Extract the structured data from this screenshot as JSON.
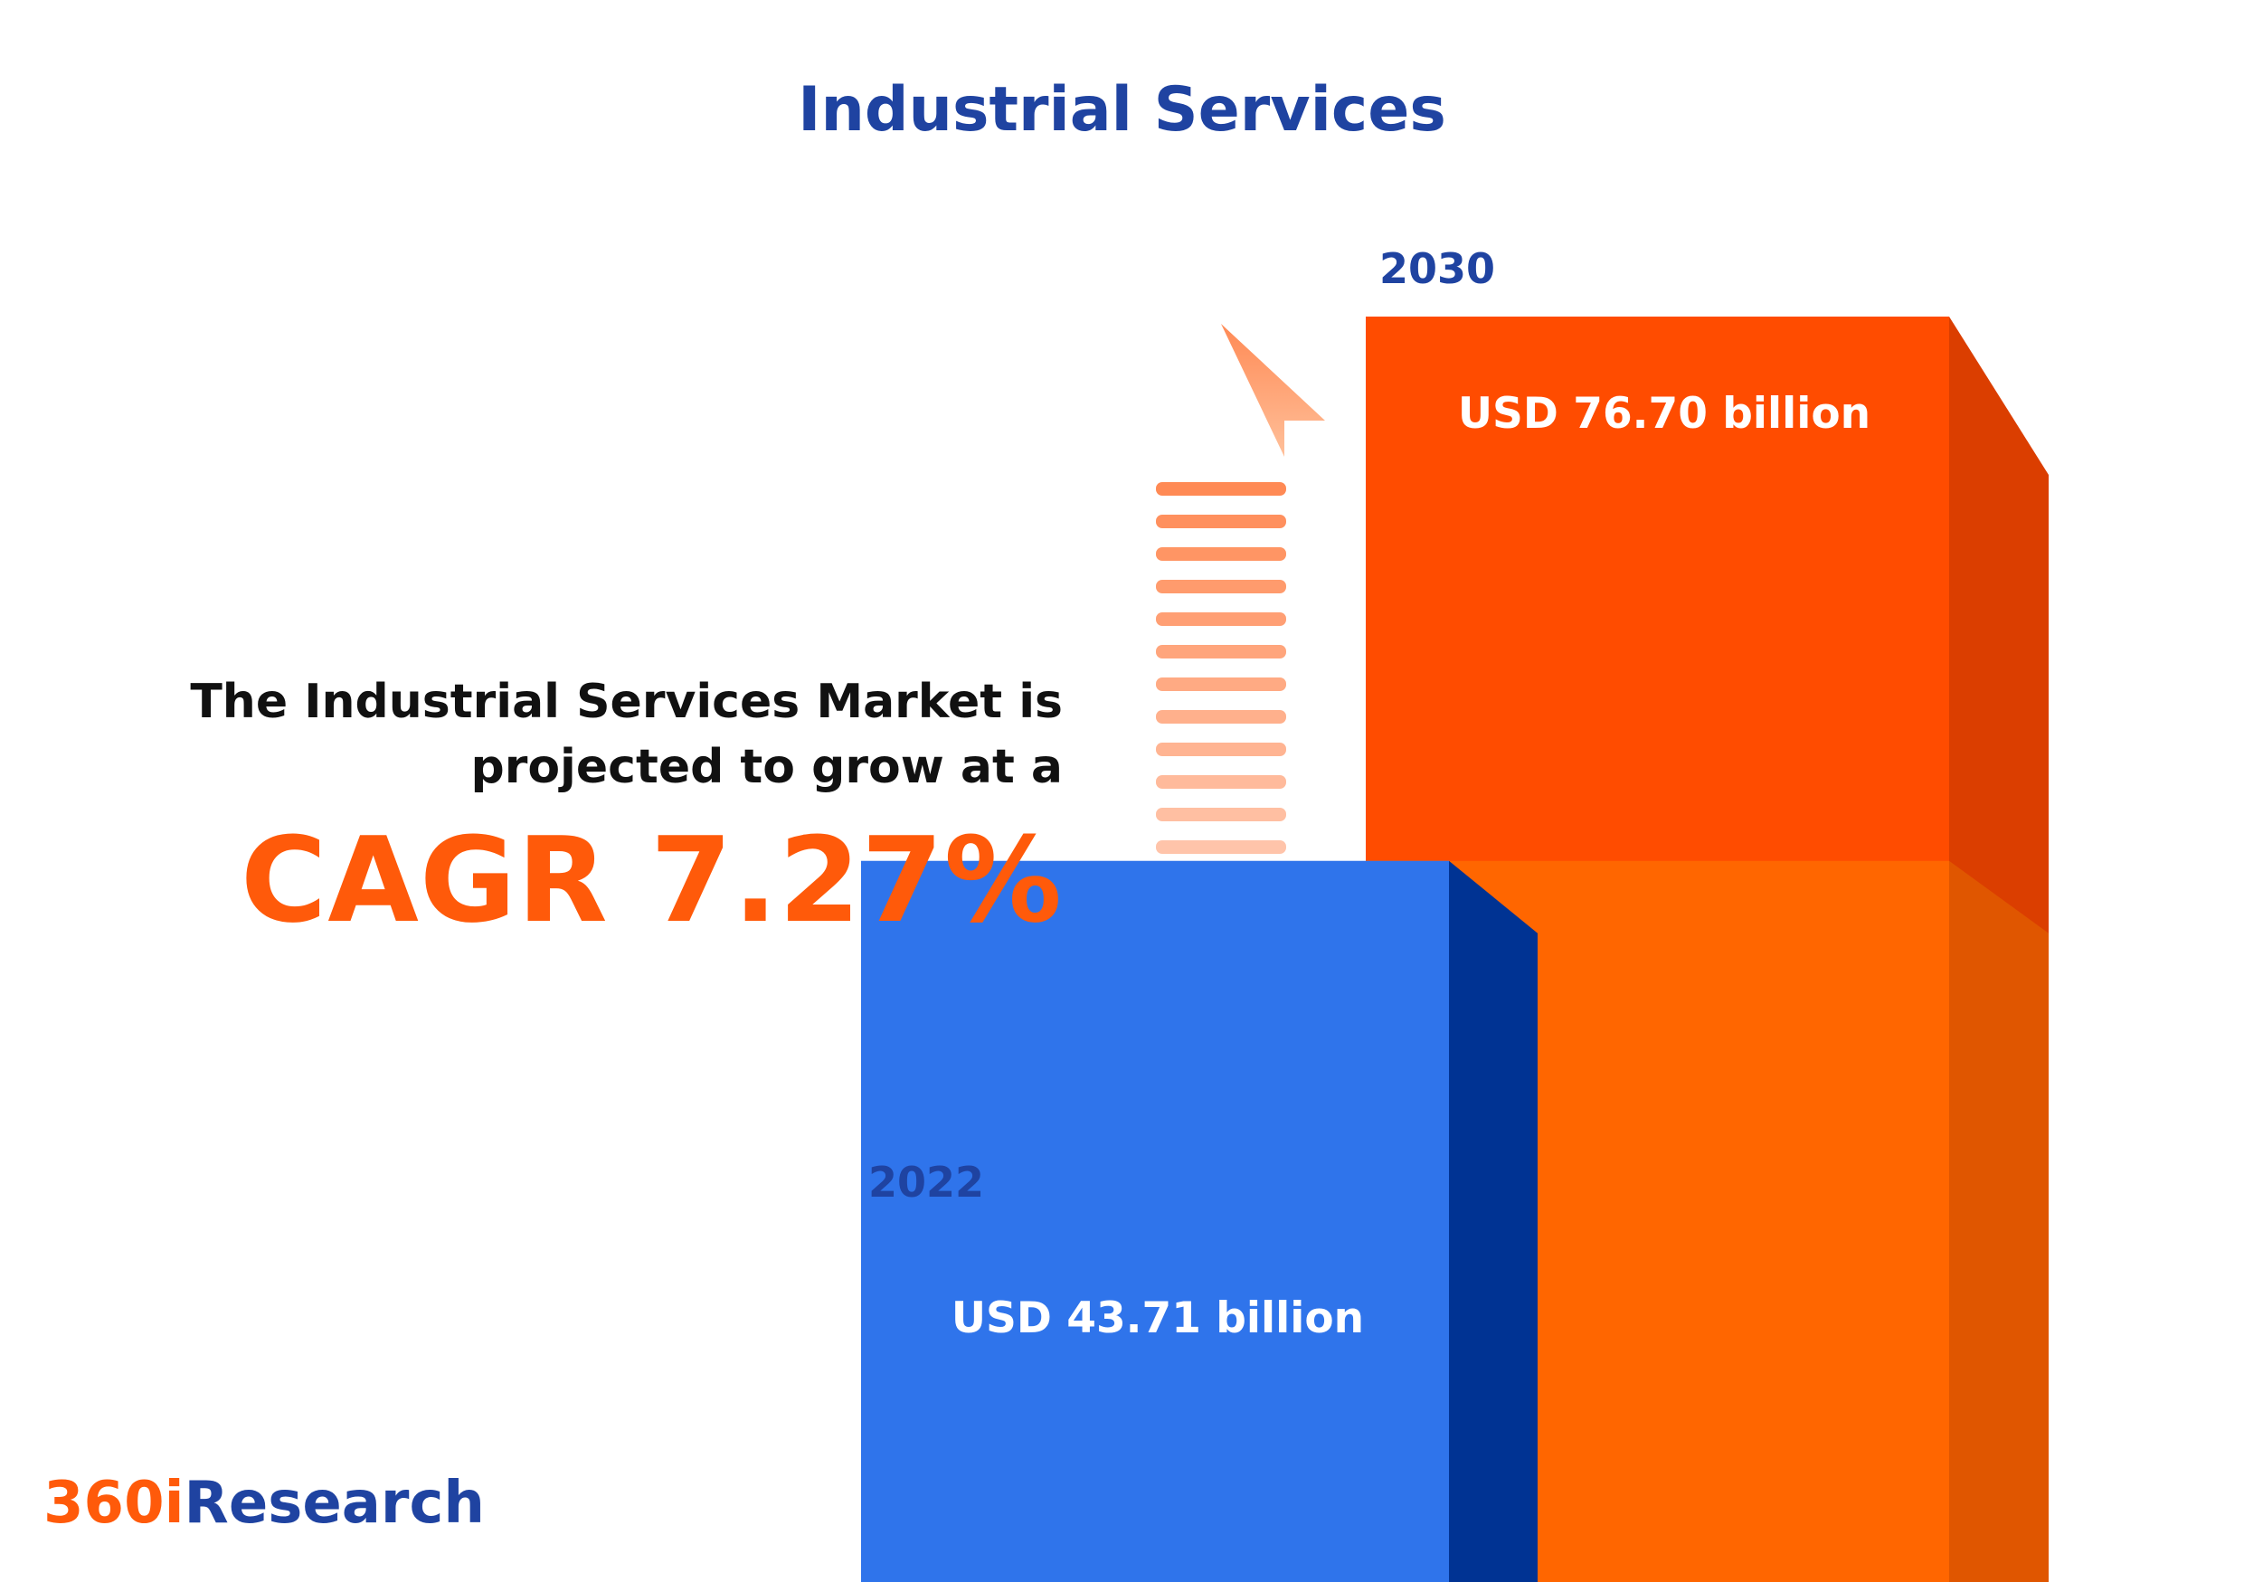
{
  "title": "Industrial Services",
  "summary": {
    "line1": "The Industrial Services Market is",
    "line2": "projected to grow at a",
    "cagr": "CAGR 7.27%"
  },
  "logo": {
    "accent": "360i",
    "main": "Research"
  },
  "colors": {
    "title": "#1f43a1",
    "bar_2022": "#2f74eb",
    "bar_2022_side": "#003393",
    "bar_2030": "#ff4c00",
    "bar_2030_side": "#db3e00",
    "bar_2030_lower": "#ff6600",
    "cagr": "#ff5a0a",
    "arrow": "#ff8a55"
  },
  "chart_data": {
    "type": "bar",
    "categories": [
      "2022",
      "2030"
    ],
    "values": [
      43.71,
      76.7
    ],
    "value_labels": [
      "USD 43.71 billion",
      "USD 76.70 billion"
    ],
    "unit": "USD billion",
    "cagr_percent": 7.27
  }
}
